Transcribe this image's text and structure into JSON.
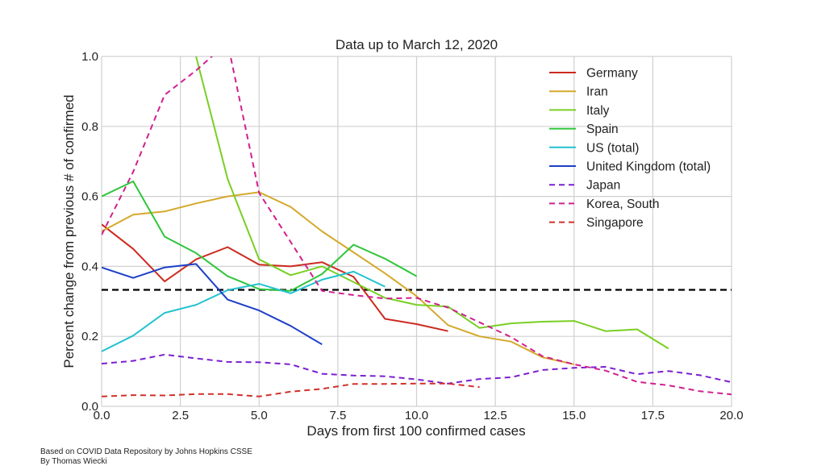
{
  "chart_data": {
    "type": "line",
    "title": "Data up to March 12, 2020",
    "xlabel": "Days from first 100 confirmed cases",
    "ylabel": "Percent change from previous # of confirmed",
    "xlim": [
      0,
      20
    ],
    "ylim": [
      0,
      1
    ],
    "xticks": [
      "0.0",
      "2.5",
      "5.0",
      "7.5",
      "10.0",
      "12.5",
      "15.0",
      "17.5",
      "20.0"
    ],
    "yticks": [
      "0.0",
      "0.2",
      "0.4",
      "0.6",
      "0.8",
      "1.0"
    ],
    "grid": true,
    "legend_position": "top-right",
    "reference_line": {
      "y": 0.333,
      "color": "#000000",
      "style": "dashed"
    },
    "series": [
      {
        "name": "Germany",
        "color": "#cc2a1f",
        "dash": "solid",
        "x": [
          0,
          1,
          2,
          3,
          4,
          5,
          6,
          7,
          8,
          9,
          10,
          11
        ],
        "y": [
          0.52,
          0.45,
          0.357,
          0.42,
          0.455,
          0.405,
          0.4,
          0.412,
          0.37,
          0.25,
          0.235,
          0.215
        ]
      },
      {
        "name": "Iran",
        "color": "#d4a92a",
        "dash": "solid",
        "x": [
          0,
          1,
          2,
          3,
          4,
          5,
          6,
          7,
          8,
          9,
          10,
          11,
          12,
          13,
          14,
          15
        ],
        "y": [
          0.5,
          0.548,
          0.557,
          0.58,
          0.6,
          0.612,
          0.57,
          0.5,
          0.44,
          0.38,
          0.315,
          0.232,
          0.2,
          0.185,
          0.14,
          0.12
        ]
      },
      {
        "name": "Italy",
        "color": "#79cf24",
        "dash": "solid",
        "x": [
          3,
          4,
          5,
          6,
          7,
          8,
          9,
          10,
          11,
          12,
          13,
          14,
          15,
          16,
          17,
          18
        ],
        "y": [
          1.0,
          0.65,
          0.42,
          0.375,
          0.4,
          0.355,
          0.31,
          0.29,
          0.285,
          0.224,
          0.237,
          0.242,
          0.244,
          0.215,
          0.22,
          0.165
        ]
      },
      {
        "name": "Spain",
        "color": "#2fc63a",
        "dash": "solid",
        "x": [
          0,
          1,
          2,
          3,
          4,
          5,
          6,
          7,
          8,
          9,
          10
        ],
        "y": [
          0.6,
          0.643,
          0.485,
          0.438,
          0.372,
          0.335,
          0.33,
          0.378,
          0.462,
          0.422,
          0.372
        ]
      },
      {
        "name": "US (total)",
        "color": "#22c3cf",
        "dash": "solid",
        "x": [
          0,
          1,
          2,
          3,
          4,
          5,
          6,
          7,
          8,
          9
        ],
        "y": [
          0.157,
          0.202,
          0.267,
          0.29,
          0.332,
          0.35,
          0.323,
          0.362,
          0.385,
          0.342
        ]
      },
      {
        "name": "United Kingdom (total)",
        "color": "#1d3fc7",
        "dash": "solid",
        "x": [
          0,
          1,
          2,
          3,
          4,
          5,
          6,
          7
        ],
        "y": [
          0.397,
          0.367,
          0.397,
          0.407,
          0.305,
          0.274,
          0.23,
          0.177
        ]
      },
      {
        "name": "Japan",
        "color": "#7b1fd0",
        "dash": "dashed",
        "x": [
          0,
          1,
          2,
          3,
          4,
          5,
          6,
          7,
          8,
          9,
          10,
          11,
          12,
          13,
          14,
          15,
          16,
          17,
          18,
          19,
          20
        ],
        "y": [
          0.122,
          0.13,
          0.148,
          0.137,
          0.127,
          0.126,
          0.12,
          0.093,
          0.088,
          0.086,
          0.077,
          0.065,
          0.078,
          0.083,
          0.104,
          0.11,
          0.113,
          0.092,
          0.101,
          0.089,
          0.069
        ]
      },
      {
        "name": "Korea, South",
        "color": "#d0208f",
        "dash": "dashed",
        "x": [
          0,
          1,
          2,
          3,
          4,
          5,
          6,
          7,
          8,
          9,
          10,
          11,
          12,
          13,
          14,
          15,
          16,
          17,
          18,
          19,
          20
        ],
        "y": [
          0.49,
          0.67,
          0.89,
          0.96,
          1.04,
          0.61,
          0.47,
          0.33,
          0.318,
          0.308,
          0.31,
          0.282,
          0.24,
          0.198,
          0.143,
          0.12,
          0.102,
          0.07,
          0.06,
          0.043,
          0.034
        ]
      },
      {
        "name": "Singapore",
        "color": "#d0302a",
        "dash": "dashed",
        "x": [
          0,
          1,
          2,
          3,
          4,
          5,
          6,
          7,
          8,
          9,
          10,
          11,
          12
        ],
        "y": [
          0.028,
          0.032,
          0.031,
          0.035,
          0.035,
          0.028,
          0.042,
          0.05,
          0.064,
          0.064,
          0.065,
          0.065,
          0.055
        ]
      }
    ]
  },
  "footnotes": [
    "Based on COVID Data Repository by Johns Hopkins CSSE",
    "By Thomas Wiecki"
  ]
}
